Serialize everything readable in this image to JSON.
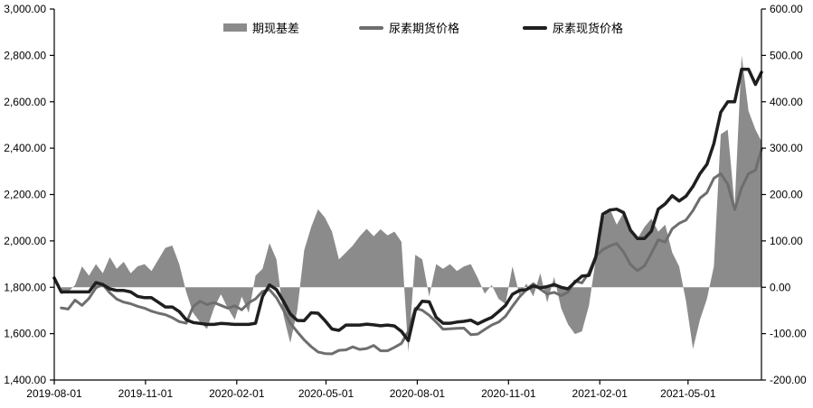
{
  "chart_data": {
    "type": "combo-area-line",
    "title": "",
    "legend": [
      {
        "label": "期现基差",
        "type": "area",
        "color": "#8b8b8b"
      },
      {
        "label": "尿素期货价格",
        "type": "line",
        "color": "#6e6e6e"
      },
      {
        "label": "尿素现货价格",
        "type": "line",
        "color": "#1f1f1f"
      }
    ],
    "layout_hints": {
      "grid": false,
      "legend_position": "top",
      "background": "#ffffff",
      "axis_color": "#000000"
    },
    "x_axis": {
      "start_date": "2019-08-01",
      "end_date": "2021-07-14",
      "total_days": 713,
      "tick_labels": [
        "2019-08-01",
        "2019-11-01",
        "2020-02-01",
        "2020-05-01",
        "2020-08-01",
        "2020-11-01",
        "2021-02-01",
        "2021-05-01"
      ],
      "tick_day_offsets": [
        0,
        92,
        184,
        274,
        366,
        458,
        550,
        639
      ]
    },
    "y_left": {
      "min": 1400,
      "max": 3000,
      "tick_values": [
        3000,
        2800,
        2600,
        2400,
        2200,
        2000,
        1800,
        1600,
        1400
      ],
      "tick_labels": [
        "3,000.00",
        "2,800.00",
        "2,600.00",
        "2,400.00",
        "2,200.00",
        "2,000.00",
        "1,800.00",
        "1,600.00",
        "1,400.00"
      ]
    },
    "y_right": {
      "min": -200,
      "max": 600,
      "tick_values": [
        600,
        500,
        400,
        300,
        200,
        100,
        0,
        -100,
        -200
      ],
      "tick_labels": [
        "600.00",
        "500.00",
        "400.00",
        "300.00",
        "200.00",
        "100.00",
        "0.00",
        "-100.00",
        "-200.00"
      ]
    },
    "sampling_interval_days": 7,
    "series": {
      "spot": [
        1840,
        1780,
        1780,
        1780,
        1780,
        1780,
        1820,
        1812,
        1793,
        1786,
        1786,
        1780,
        1761,
        1755,
        1755,
        1735,
        1715,
        1715,
        1695,
        1660,
        1648,
        1644,
        1640,
        1640,
        1644,
        1642,
        1640,
        1640,
        1640,
        1645,
        1760,
        1810,
        1790,
        1740,
        1685,
        1657,
        1656,
        1690,
        1688,
        1656,
        1620,
        1614,
        1637,
        1637,
        1637,
        1641,
        1638,
        1634,
        1637,
        1633,
        1610,
        1570,
        1700,
        1740,
        1737,
        1670,
        1645,
        1645,
        1650,
        1653,
        1658,
        1642,
        1657,
        1670,
        1695,
        1722,
        1770,
        1786,
        1790,
        1806,
        1797,
        1803,
        1812,
        1800,
        1793,
        1822,
        1848,
        1851,
        1930,
        2115,
        2133,
        2137,
        2122,
        2046,
        2010,
        2010,
        2042,
        2137,
        2160,
        2195,
        2172,
        2193,
        2235,
        2290,
        2330,
        2420,
        2555,
        2600,
        2600,
        2740,
        2740,
        2675,
        2727
      ],
      "futures": [
        null,
        1711,
        1706,
        1745,
        1722,
        1752,
        1798,
        1812,
        1776,
        1749,
        1736,
        1729,
        1718,
        1710,
        1697,
        1688,
        1682,
        1669,
        1652,
        1645,
        1716,
        1740,
        1725,
        1734,
        1722,
        1710,
        1720,
        1703,
        1733,
        1750,
        1782,
        1790,
        1755,
        1702,
        1645,
        1608,
        1573,
        1544,
        1521,
        1514,
        1513,
        1528,
        1530,
        1543,
        1532,
        1536,
        1549,
        1526,
        1526,
        1541,
        1558,
        1610,
        1709,
        1701,
        1679,
        1650,
        1619,
        1621,
        1623,
        1624,
        1596,
        1598,
        1618,
        1637,
        1650,
        1675,
        1718,
        1758,
        1790,
        1815,
        1792,
        1771,
        1778,
        1764,
        1779,
        1827,
        1819,
        1862,
        1934,
        1962,
        1978,
        1989,
        1952,
        1898,
        1872,
        1892,
        1946,
        2005,
        1995,
        2052,
        2076,
        2090,
        2131,
        2184,
        2208,
        2270,
        2290,
        2245,
        2135,
        2230,
        2290,
        2305,
        2395
      ],
      "basis": [
        null,
        -15,
        -10,
        5,
        45,
        25,
        50,
        30,
        65,
        40,
        55,
        30,
        45,
        50,
        35,
        60,
        85,
        90,
        50,
        -10,
        -55,
        -75,
        -90,
        -45,
        -15,
        -45,
        -70,
        -20,
        -55,
        25,
        40,
        95,
        60,
        -60,
        -120,
        -50,
        80,
        130,
        168,
        150,
        120,
        60,
        75,
        90,
        110,
        126,
        110,
        125,
        112,
        120,
        98,
        -140,
        70,
        60,
        -20,
        50,
        40,
        50,
        35,
        45,
        50,
        20,
        -14,
        5,
        -25,
        -36,
        45,
        -17,
        8,
        -20,
        30,
        -33,
        22,
        -45,
        -80,
        -101,
        -95,
        -40,
        60,
        150,
        170,
        135,
        160,
        125,
        105,
        130,
        148,
        120,
        135,
        75,
        45,
        -30,
        -133,
        -70,
        -25,
        45,
        330,
        340,
        175,
        500,
        380,
        340,
        315
      ]
    }
  }
}
